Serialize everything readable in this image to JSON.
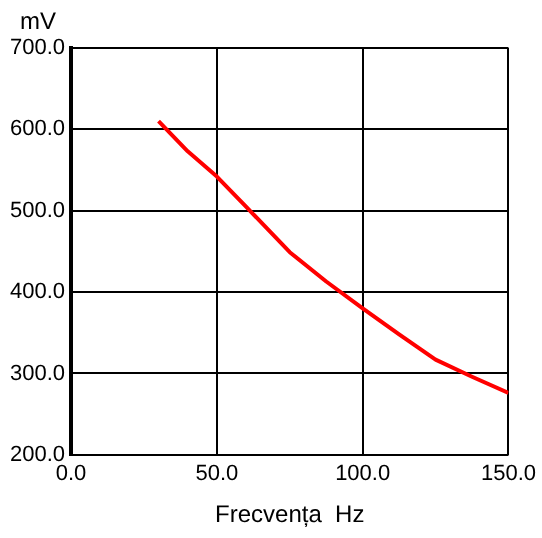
{
  "chart_data": {
    "type": "line",
    "xlabel": "Frecvența  Hz",
    "ylabel": "mV",
    "x": [
      30,
      40,
      50,
      60,
      75,
      87.5,
      100,
      112.5,
      125,
      137.5,
      150
    ],
    "series": [
      {
        "color": "#ff0000",
        "values": [
          610,
          573,
          542,
          505,
          449,
          413,
          380,
          348,
          317,
          296,
          276
        ]
      }
    ],
    "xlim": [
      0,
      150
    ],
    "xticks": [
      {
        "value": 0,
        "label": "0.0"
      },
      {
        "value": 50,
        "label": "50.0"
      },
      {
        "value": 100,
        "label": "100.0"
      },
      {
        "value": 150,
        "label": "150.0"
      }
    ],
    "ylim": [
      200,
      700
    ],
    "yticks": [
      {
        "value": 200,
        "label": "200.0"
      },
      {
        "value": 300,
        "label": "300.0"
      },
      {
        "value": 400,
        "label": "400.0"
      },
      {
        "value": 500,
        "label": "500.0"
      },
      {
        "value": 600,
        "label": "600.0"
      },
      {
        "value": 700,
        "label": "700.0"
      }
    ],
    "grid": true,
    "legend": false,
    "marker": "none",
    "line_style": "solid"
  }
}
